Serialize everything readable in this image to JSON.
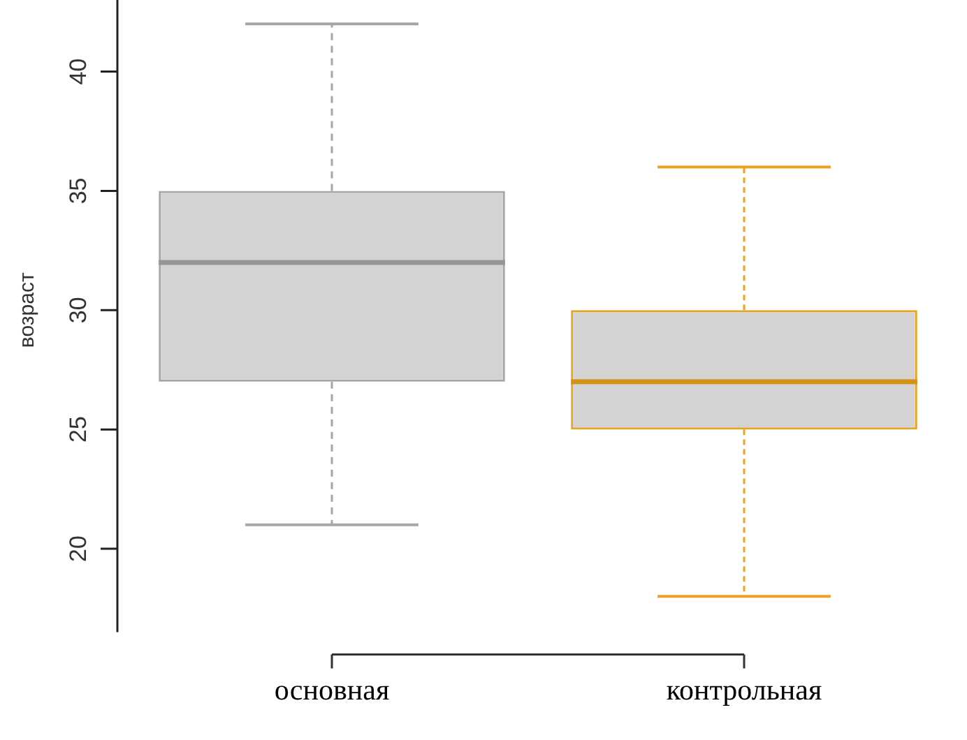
{
  "chart_data": {
    "type": "box",
    "ylabel": "возраст",
    "categories": [
      "основная",
      "контрольная"
    ],
    "boxes": [
      {
        "low": 21,
        "q1": 27,
        "median": 32,
        "q3": 35,
        "high": 42
      },
      {
        "low": 18,
        "q1": 25,
        "median": 27,
        "q3": 30,
        "high": 36
      }
    ],
    "colors": [
      "#a6a6a6",
      "#eba21c"
    ],
    "ylim": [
      16.5,
      43
    ],
    "yticks": [
      20,
      25,
      30,
      35,
      40
    ],
    "grid": false,
    "legend": false
  }
}
